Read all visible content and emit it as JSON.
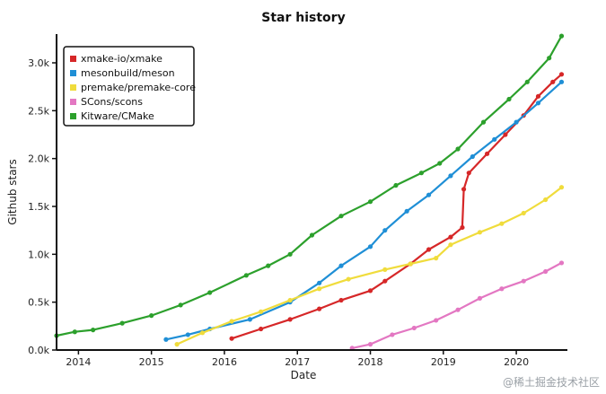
{
  "chart_data": {
    "type": "line",
    "title": "Star history",
    "xlabel": "Date",
    "ylabel": "Github stars",
    "xlim": [
      2013.7,
      2020.7
    ],
    "ylim": [
      0,
      3300
    ],
    "x_ticks": [
      {
        "value": 2014,
        "label": "2014"
      },
      {
        "value": 2015,
        "label": "2015"
      },
      {
        "value": 2016,
        "label": "2016"
      },
      {
        "value": 2017,
        "label": "2017"
      },
      {
        "value": 2018,
        "label": "2018"
      },
      {
        "value": 2019,
        "label": "2019"
      },
      {
        "value": 2020,
        "label": "2020"
      }
    ],
    "y_ticks": [
      {
        "value": 0,
        "label": "0.0k"
      },
      {
        "value": 500,
        "label": "0.5k"
      },
      {
        "value": 1000,
        "label": "1.0k"
      },
      {
        "value": 1500,
        "label": "1.5k"
      },
      {
        "value": 2000,
        "label": "2.0k"
      },
      {
        "value": 2500,
        "label": "2.5k"
      },
      {
        "value": 3000,
        "label": "3.0k"
      }
    ],
    "legend_position": "top-left",
    "grid": false,
    "series": [
      {
        "name": "xmake-io/xmake",
        "color": "#d62728",
        "points": [
          [
            2016.1,
            120
          ],
          [
            2016.5,
            220
          ],
          [
            2016.9,
            320
          ],
          [
            2017.3,
            430
          ],
          [
            2017.6,
            520
          ],
          [
            2018.0,
            620
          ],
          [
            2018.2,
            720
          ],
          [
            2018.55,
            900
          ],
          [
            2018.8,
            1050
          ],
          [
            2019.1,
            1180
          ],
          [
            2019.26,
            1280
          ],
          [
            2019.28,
            1680
          ],
          [
            2019.35,
            1850
          ],
          [
            2019.6,
            2050
          ],
          [
            2019.85,
            2250
          ],
          [
            2020.1,
            2450
          ],
          [
            2020.3,
            2650
          ],
          [
            2020.5,
            2800
          ],
          [
            2020.62,
            2880
          ]
        ]
      },
      {
        "name": "mesonbuild/meson",
        "color": "#1f8fd6",
        "points": [
          [
            2015.2,
            110
          ],
          [
            2015.5,
            160
          ],
          [
            2015.8,
            220
          ],
          [
            2016.35,
            320
          ],
          [
            2016.9,
            500
          ],
          [
            2017.3,
            700
          ],
          [
            2017.6,
            880
          ],
          [
            2018.0,
            1080
          ],
          [
            2018.2,
            1250
          ],
          [
            2018.5,
            1450
          ],
          [
            2018.8,
            1620
          ],
          [
            2019.1,
            1820
          ],
          [
            2019.4,
            2020
          ],
          [
            2019.7,
            2200
          ],
          [
            2020.0,
            2380
          ],
          [
            2020.3,
            2580
          ],
          [
            2020.62,
            2800
          ]
        ]
      },
      {
        "name": "premake/premake-core",
        "color": "#f0dc3c",
        "points": [
          [
            2015.35,
            60
          ],
          [
            2015.7,
            180
          ],
          [
            2016.1,
            300
          ],
          [
            2016.5,
            400
          ],
          [
            2016.9,
            520
          ],
          [
            2017.3,
            640
          ],
          [
            2017.7,
            740
          ],
          [
            2018.2,
            840
          ],
          [
            2018.55,
            900
          ],
          [
            2018.9,
            960
          ],
          [
            2019.1,
            1100
          ],
          [
            2019.5,
            1230
          ],
          [
            2019.8,
            1320
          ],
          [
            2020.1,
            1430
          ],
          [
            2020.4,
            1570
          ],
          [
            2020.62,
            1700
          ]
        ]
      },
      {
        "name": "SCons/scons",
        "color": "#e377c2",
        "points": [
          [
            2017.75,
            20
          ],
          [
            2018.0,
            60
          ],
          [
            2018.3,
            160
          ],
          [
            2018.6,
            230
          ],
          [
            2018.9,
            310
          ],
          [
            2019.2,
            420
          ],
          [
            2019.5,
            540
          ],
          [
            2019.8,
            640
          ],
          [
            2020.1,
            720
          ],
          [
            2020.4,
            820
          ],
          [
            2020.62,
            910
          ]
        ]
      },
      {
        "name": "Kitware/CMake",
        "color": "#2ca02c",
        "points": [
          [
            2013.7,
            150
          ],
          [
            2013.95,
            190
          ],
          [
            2014.2,
            210
          ],
          [
            2014.6,
            280
          ],
          [
            2015.0,
            360
          ],
          [
            2015.4,
            470
          ],
          [
            2015.8,
            600
          ],
          [
            2016.3,
            780
          ],
          [
            2016.6,
            880
          ],
          [
            2016.9,
            1000
          ],
          [
            2017.2,
            1200
          ],
          [
            2017.6,
            1400
          ],
          [
            2018.0,
            1550
          ],
          [
            2018.35,
            1720
          ],
          [
            2018.7,
            1850
          ],
          [
            2018.95,
            1950
          ],
          [
            2019.2,
            2100
          ],
          [
            2019.55,
            2380
          ],
          [
            2019.9,
            2620
          ],
          [
            2020.15,
            2800
          ],
          [
            2020.45,
            3050
          ],
          [
            2020.62,
            3280
          ]
        ]
      }
    ]
  },
  "watermark": "@稀土掘金技术社区"
}
